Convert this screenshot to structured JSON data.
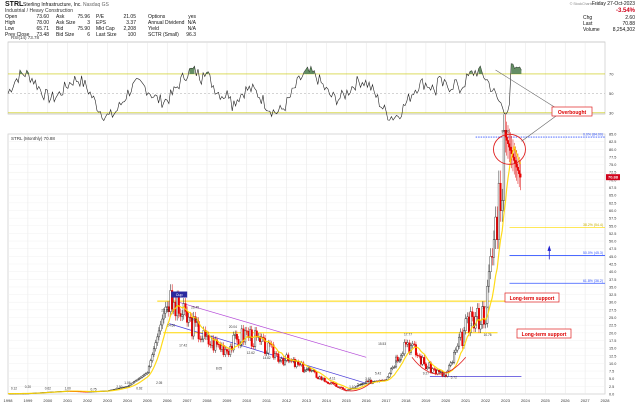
{
  "header": {
    "symbol": "STRL",
    "company": "Sterling Infrastructure, Inc.",
    "exchange": "Nasdaq GS",
    "industry": "Industrial / Heavy Construction",
    "quote_left": [
      {
        "label": "Open",
        "value": "73.60"
      },
      {
        "label": "High",
        "value": "78.00"
      },
      {
        "label": "Low",
        "value": "65.71"
      },
      {
        "label": "Prev Close",
        "value": "73.48"
      }
    ],
    "quote_mid": [
      {
        "label": "Ask",
        "value": "75.96"
      },
      {
        "label": "Ask Size",
        "value": "3"
      },
      {
        "label": "Bid",
        "value": "75.90"
      },
      {
        "label": "Bid Size",
        "value": "6"
      }
    ],
    "quote_fund": [
      {
        "label": "P/E",
        "value": "21.05"
      },
      {
        "label": "EPS",
        "value": "3.37"
      },
      {
        "label": "Mkt Cap",
        "value": "2,208"
      },
      {
        "label": "Last Size",
        "value": "100"
      }
    ],
    "quote_opts": [
      {
        "label": "Options",
        "value": "yes"
      },
      {
        "label": "Annual Dividend",
        "value": "N/A"
      },
      {
        "label": "Yield",
        "value": "N/A"
      },
      {
        "label": "SCTR (Small)",
        "value": "96.3"
      }
    ],
    "date": "Friday 27-Oct-2023",
    "change_pct": "-3.54%",
    "change_abs": "2.60",
    "change_color": "#d0021b",
    "quote_right": [
      {
        "label": "Chg",
        "value": "2.60"
      },
      {
        "label": "Last",
        "value": "70.88"
      },
      {
        "label": "Volume",
        "value": "8,254,302"
      }
    ],
    "credit": "© StockCharts.com"
  },
  "rsi_panel": {
    "label": "RSI(14) 73.78",
    "levels": [
      "70",
      "50",
      "30"
    ],
    "overbought_color": "#4a7a4a"
  },
  "price_panel": {
    "label": "STRL (Monthly) 70.88",
    "last_price": "70.88",
    "last_price_color": "#d0021b",
    "y_ticks": [
      "85.0",
      "82.5",
      "80.0",
      "77.5",
      "75.0",
      "72.5",
      "70.0",
      "67.5",
      "65.0",
      "62.5",
      "60.0",
      "57.5",
      "55.0",
      "52.5",
      "50.0",
      "47.5",
      "45.0",
      "42.5",
      "40.0",
      "37.5",
      "35.0",
      "32.5",
      "30.0",
      "27.5",
      "25.0",
      "22.5",
      "20.0",
      "17.5",
      "15.0",
      "12.5",
      "10.0",
      "7.5",
      "5.0",
      "2.5",
      "0.0"
    ],
    "fib_labels": [
      "0.0% (84.00)",
      "38.2% (54.4)",
      "50.0% (45.3)",
      "61.8% (36.2)"
    ],
    "price_labels": [
      "0.12",
      "0.20",
      "0.62",
      "1.00",
      "0.75",
      "2.50",
      "1.06",
      "0.92",
      "2.05",
      "22.35",
      "30.35",
      "24.60",
      "26.45",
      "17.42",
      "23.09",
      "20.04",
      "8.05",
      "12.62",
      "14.82",
      "4.11",
      "8.12",
      "1.10",
      "3.63",
      "5.42",
      "17.77",
      "9.43",
      "9.27",
      "8.90",
      "5.72",
      "21.5",
      "27.4",
      "84.00",
      "4.45",
      "10.76",
      "5.05",
      "15.53"
    ]
  },
  "annotations": {
    "overbought": "Overbought",
    "support_1": "Long-term support",
    "support_2": "Long-term support",
    "rounding_bottom": "Cup"
  },
  "x_axis": [
    "1998",
    "1999",
    "2000",
    "2001",
    "2002",
    "2003",
    "2004",
    "2005",
    "2006",
    "2007",
    "2008",
    "2009",
    "2010",
    "2011",
    "2012",
    "2013",
    "2014",
    "2015",
    "2016",
    "2017",
    "2018",
    "2019",
    "2020",
    "2021",
    "2022",
    "2023",
    "2024",
    "2025",
    "2026",
    "2027",
    "2028"
  ],
  "chart_data": {
    "type": "line",
    "title": "STRL (Monthly)",
    "x": [
      "1998",
      "1999",
      "2000",
      "2001",
      "2002",
      "2003",
      "2004",
      "2005",
      "2006",
      "2007",
      "2008",
      "2009",
      "2010",
      "2011",
      "2012",
      "2013",
      "2014",
      "2015",
      "2016",
      "2017",
      "2018",
      "2019",
      "2020",
      "2021",
      "2022",
      "2023",
      "2023.75"
    ],
    "series": [
      {
        "name": "STRL",
        "values": [
          0.12,
          0.2,
          0.62,
          1.0,
          0.75,
          1.06,
          2.5,
          7.0,
          30.35,
          24.6,
          17.42,
          15.0,
          20.04,
          14.82,
          11.0,
          8.12,
          4.11,
          1.1,
          3.63,
          5.42,
          17.77,
          9.27,
          5.72,
          21.5,
          27.4,
          84.0,
          70.88
        ]
      }
    ],
    "rsi": {
      "name": "RSI(14)",
      "last": 73.78,
      "overbought": 70,
      "oversold": 30
    },
    "fib_levels": [
      84.0,
      54.4,
      45.3,
      36.2
    ],
    "ylim": [
      0,
      85
    ],
    "xlim": [
      1998,
      2028
    ]
  }
}
